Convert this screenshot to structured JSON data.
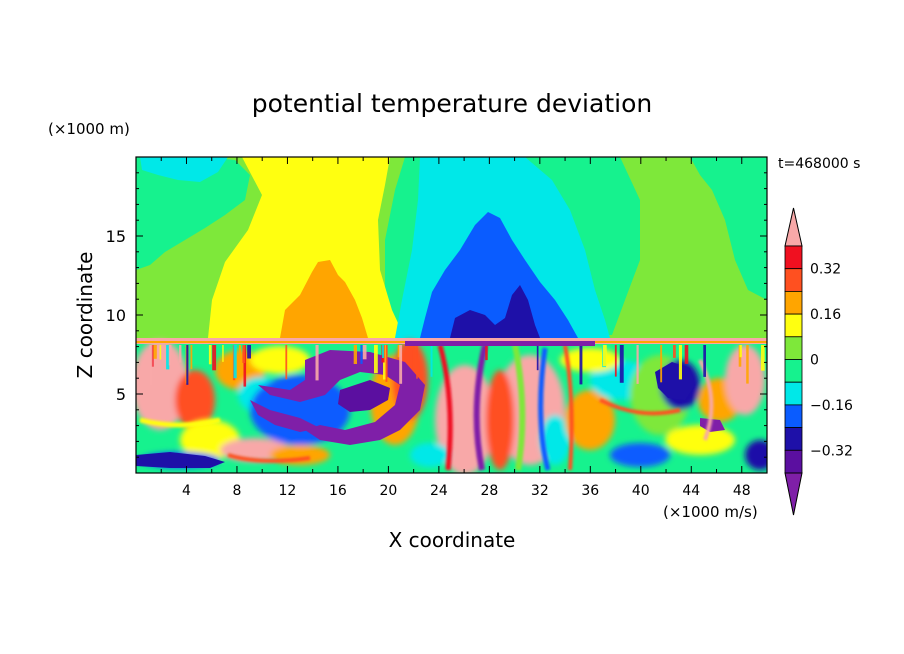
{
  "chart_data": {
    "type": "heatmap",
    "title": "potential temperature deviation",
    "xlabel": "X coordinate",
    "ylabel": "Z coordinate",
    "x_unit": "(×1000 m/s)",
    "y_unit": "(×1000 m)",
    "time_label": "t=468000 s",
    "xlim": [
      0,
      50
    ],
    "ylim": [
      0,
      20
    ],
    "x_ticks": [
      4,
      8,
      12,
      16,
      20,
      24,
      28,
      32,
      36,
      40,
      44,
      48
    ],
    "y_ticks": [
      5,
      10,
      15
    ],
    "colorbar": {
      "levels": [
        -0.4,
        -0.32,
        -0.24,
        -0.16,
        -0.08,
        0,
        0.08,
        0.16,
        0.24,
        0.32,
        0.4
      ],
      "tick_labels": [
        "-0.32",
        "-0.16",
        "0",
        "0.16",
        "0.32"
      ],
      "tick_values": [
        -0.32,
        -0.16,
        0,
        0.16,
        0.32
      ],
      "colors": [
        "#7f1fa8",
        "#5b0fa0",
        "#1e10a8",
        "#0a5cff",
        "#00e8e8",
        "#16f28e",
        "#7ee83a",
        "#ffff10",
        "#ffa500",
        "#ff5020",
        "#f01020",
        "#f8a8a8"
      ],
      "extend": "both"
    }
  }
}
